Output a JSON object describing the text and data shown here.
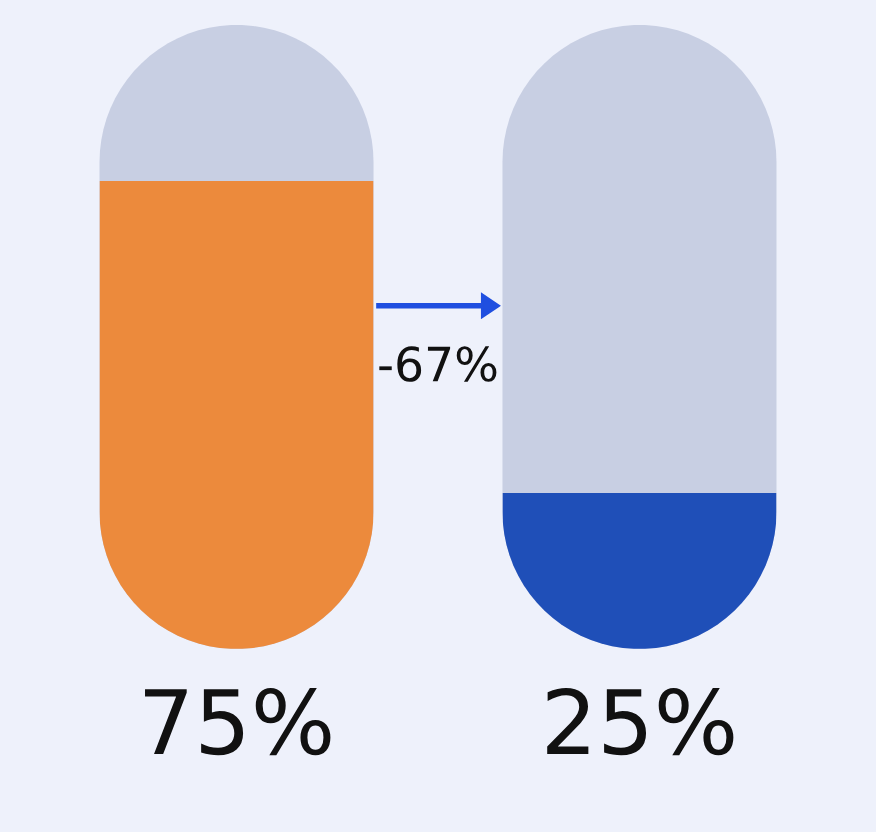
{
  "chart_data": {
    "type": "bar",
    "categories": [
      null,
      null
    ],
    "values": [
      75,
      25
    ],
    "colors": [
      "#ec8a3c",
      "#1f4fb8"
    ],
    "ylim": [
      0,
      100
    ],
    "tick_labels": false,
    "value_labels": [
      "75%",
      "25%"
    ],
    "annotations": [
      "-67%"
    ]
  }
}
